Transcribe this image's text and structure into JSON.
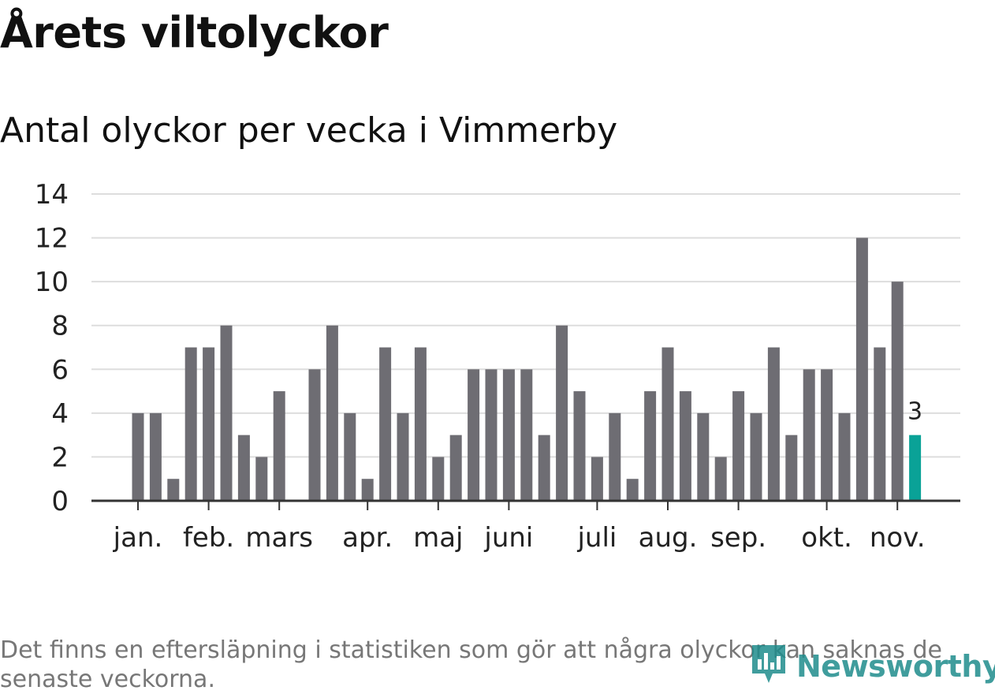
{
  "header": {
    "title": "Årets viltolyckor",
    "subtitle": "Antal olyckor per vecka i Vimmerby"
  },
  "footer": {
    "note": "Det finns en eftersläpning i statistiken som gör att några olyckor kan saknas de senaste veckorna.",
    "brand": "Newsworthy",
    "brand_icon": "newsworthy-logo-icon"
  },
  "colors": {
    "bar": "#6e6d73",
    "highlight": "#0aa297",
    "grid": "#dddddd",
    "axis": "#333333",
    "text": "#222222",
    "brand": "#1f8c8c"
  },
  "chart_data": {
    "type": "bar",
    "title": "Antal olyckor per vecka i Vimmerby",
    "xlabel": "",
    "ylabel": "",
    "ylim": [
      0,
      14
    ],
    "yticks": [
      0,
      2,
      4,
      6,
      8,
      10,
      12,
      14
    ],
    "grid": true,
    "week_count": 50,
    "month_ticks": [
      {
        "label": "jan.",
        "week": 3
      },
      {
        "label": "feb.",
        "week": 7
      },
      {
        "label": "mars",
        "week": 11
      },
      {
        "label": "apr.",
        "week": 16
      },
      {
        "label": "maj",
        "week": 20
      },
      {
        "label": "juni",
        "week": 24
      },
      {
        "label": "juli",
        "week": 29
      },
      {
        "label": "aug.",
        "week": 33
      },
      {
        "label": "sep.",
        "week": 37
      },
      {
        "label": "okt.",
        "week": 42
      },
      {
        "label": "nov.",
        "week": 46
      }
    ],
    "weeks": [
      3,
      4,
      5,
      6,
      7,
      8,
      9,
      10,
      11,
      12,
      13,
      14,
      15,
      16,
      17,
      18,
      19,
      20,
      21,
      22,
      23,
      24,
      25,
      26,
      27,
      28,
      29,
      30,
      31,
      32,
      33,
      34,
      35,
      36,
      37,
      38,
      39,
      40,
      41,
      42,
      43,
      44,
      45,
      46,
      47
    ],
    "values": [
      4,
      4,
      1,
      7,
      7,
      8,
      3,
      2,
      5,
      0,
      6,
      8,
      4,
      1,
      7,
      4,
      7,
      2,
      3,
      6,
      6,
      6,
      6,
      3,
      8,
      5,
      2,
      4,
      1,
      5,
      7,
      5,
      4,
      2,
      5,
      4,
      7,
      3,
      6,
      6,
      4,
      12,
      7,
      10,
      3
    ],
    "highlight_index": 44,
    "highlight_label": "3"
  }
}
